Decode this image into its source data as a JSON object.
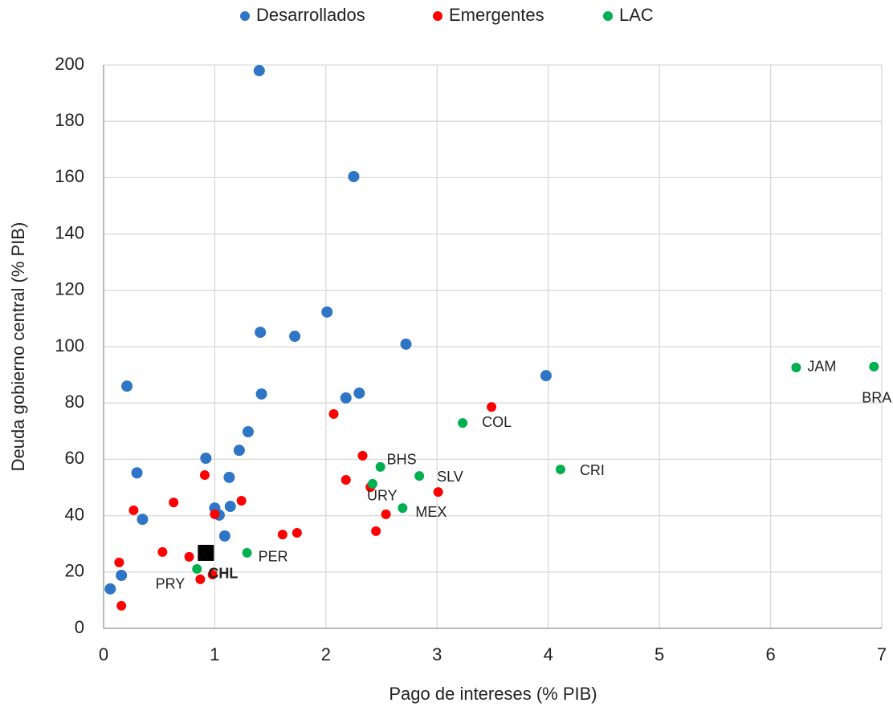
{
  "chart_data": {
    "type": "scatter",
    "x_label": "Pago de intereses (% PIB)",
    "y_label": "Deuda gobierno central (% PIB)",
    "xlim": [
      0,
      7
    ],
    "xticks": [
      0,
      1,
      2,
      3,
      4,
      5,
      6,
      7
    ],
    "ylim": [
      0,
      200
    ],
    "yticks": [
      0,
      20,
      40,
      60,
      80,
      100,
      120,
      140,
      160,
      180,
      200
    ],
    "grid": true,
    "legend": "top",
    "series": [
      {
        "name": "Desarrollados",
        "color": "#2e75c6",
        "x": [
          1.4,
          2.25,
          2.01,
          1.41,
          1.72,
          2.72,
          3.98,
          0.21,
          1.42,
          2.18,
          2.3,
          1.3,
          1.22,
          0.92,
          0.3,
          1.13,
          1.0,
          1.04,
          1.14,
          0.35,
          1.09,
          0.16,
          0.06
        ],
        "values": [
          198,
          160.4,
          112.3,
          105.1,
          103.7,
          100.9,
          89.7,
          86.0,
          83.2,
          81.8,
          83.5,
          69.8,
          63.2,
          60.4,
          55.2,
          53.6,
          42.7,
          40.2,
          43.3,
          38.7,
          32.8,
          18.8,
          14.0
        ]
      },
      {
        "name": "Emergentes",
        "color": "#ff0000",
        "x": [
          3.49,
          2.07,
          2.33,
          2.18,
          2.4,
          3.01,
          2.54,
          2.45,
          1.61,
          1.74,
          0.91,
          1.24,
          0.63,
          0.27,
          1.0,
          0.53,
          0.77,
          0.14,
          0.87,
          0.98,
          0.16
        ],
        "values": [
          78.6,
          76.1,
          61.3,
          52.7,
          50.1,
          48.4,
          40.5,
          34.5,
          33.3,
          33.9,
          54.4,
          45.3,
          44.7,
          41.9,
          40.5,
          27.1,
          25.4,
          23.4,
          17.4,
          19.1,
          8.0
        ]
      },
      {
        "name": "LAC",
        "color": "#00b050",
        "labels": [
          "JAM",
          "BRA",
          "COL",
          "CRI",
          "BHS",
          "SLV",
          "URY",
          "MEX",
          "PER",
          "PRY"
        ],
        "x": [
          6.23,
          6.93,
          3.23,
          4.11,
          2.49,
          2.84,
          2.42,
          2.69,
          1.29,
          0.84
        ],
        "values": [
          92.6,
          92.9,
          72.9,
          56.4,
          57.3,
          54.1,
          51.3,
          42.7,
          26.8,
          21.1
        ]
      }
    ],
    "highlight": {
      "label": "CHL",
      "color": "#000000",
      "x": 0.92,
      "y": 26.8
    }
  }
}
